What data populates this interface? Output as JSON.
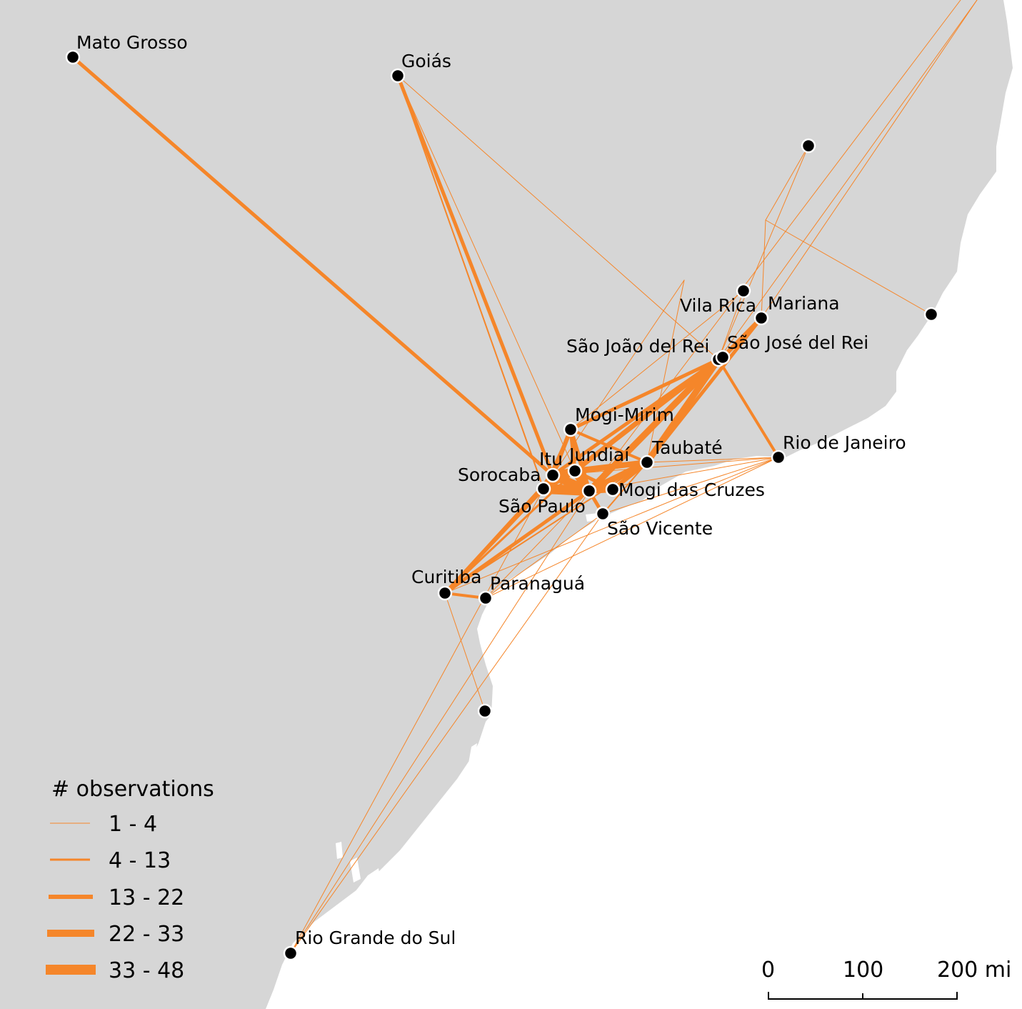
{
  "colors": {
    "land": "#d6d6d6",
    "sea": "#ffffff",
    "flow": "#f5862a",
    "node_fill": "#000000",
    "node_stroke": "#ffffff"
  },
  "places": [
    {
      "id": "mato-grosso",
      "label": "Mato Grosso"
    },
    {
      "id": "goias",
      "label": "Goiás"
    },
    {
      "id": "vila-rica",
      "label": "Vila Rica"
    },
    {
      "id": "mariana",
      "label": "Mariana"
    },
    {
      "id": "sao-joao-del-rei",
      "label": "São João del Rei"
    },
    {
      "id": "sao-jose-del-rei",
      "label": "São José del Rei"
    },
    {
      "id": "mogi-mirim",
      "label": "Mogi-Mirim"
    },
    {
      "id": "taubate",
      "label": "Taubaté"
    },
    {
      "id": "rio-de-janeiro",
      "label": "Rio de Janeiro"
    },
    {
      "id": "itu",
      "label": "Itu"
    },
    {
      "id": "jundiai",
      "label": "Jundiaí"
    },
    {
      "id": "sorocaba",
      "label": "Sorocaba"
    },
    {
      "id": "mogi-das-cruzes",
      "label": "Mogi das Cruzes"
    },
    {
      "id": "sao-paulo",
      "label": "São Paulo"
    },
    {
      "id": "sao-vicente",
      "label": "São Vicente"
    },
    {
      "id": "curitiba",
      "label": "Curitiba"
    },
    {
      "id": "paranagua",
      "label": "Paranaguá"
    },
    {
      "id": "rio-grande-do-sul",
      "label": "Rio Grande do Sul"
    },
    {
      "id": "unlabeled-ne",
      "label": ""
    },
    {
      "id": "unlabeled-e",
      "label": ""
    },
    {
      "id": "unlabeled-s",
      "label": ""
    }
  ],
  "legend": {
    "title": "# observations",
    "classes": [
      {
        "label": "1 - 4"
      },
      {
        "label": "4 - 13"
      },
      {
        "label": "13 - 22"
      },
      {
        "label": "22 - 33"
      },
      {
        "label": "33 - 48"
      }
    ]
  },
  "scale_bar": {
    "ticks": [
      "0",
      "100",
      "200 mi"
    ]
  }
}
